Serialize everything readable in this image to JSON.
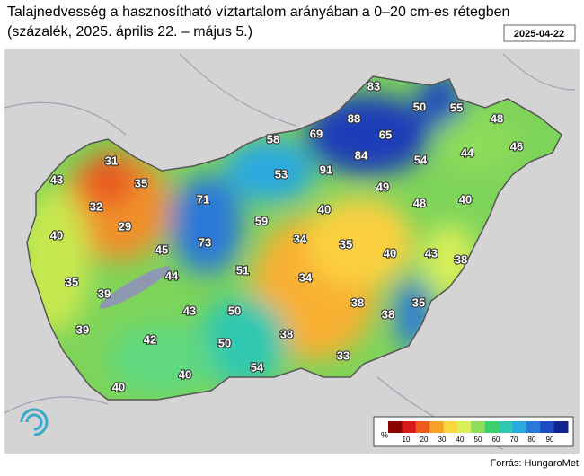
{
  "header": {
    "title": "Talajnedvesség a hasznosítható víztartalom arányában a 0–20 cm-es rétegben",
    "subtitle": "(százalék, 2025. április 22. – május 5.)",
    "date": "2025-04-22"
  },
  "stations": [
    83,
    50,
    55,
    88,
    48,
    58,
    69,
    65,
    46,
    84,
    54,
    44,
    31,
    91,
    35,
    43,
    53,
    49,
    71,
    32,
    48,
    40,
    40,
    59,
    29,
    40,
    34,
    35,
    73,
    45,
    40,
    43,
    38,
    44,
    51,
    34,
    35,
    39,
    43,
    50,
    38,
    35,
    38,
    39,
    42,
    38,
    50,
    33,
    54,
    40,
    40
  ],
  "legend": {
    "unit": "%",
    "ticks": [
      10,
      20,
      30,
      40,
      50,
      60,
      70,
      80,
      90
    ],
    "colors": [
      "#8b0000",
      "#d7191c",
      "#f05a1e",
      "#f6a02a",
      "#fbd63c",
      "#d9ef5a",
      "#8fdc5a",
      "#3ccf6e",
      "#2ec8b0",
      "#2aa8e0",
      "#2a78d8",
      "#1f4cc0",
      "#14248e"
    ]
  },
  "source": "Forrás: HungaroMet"
}
